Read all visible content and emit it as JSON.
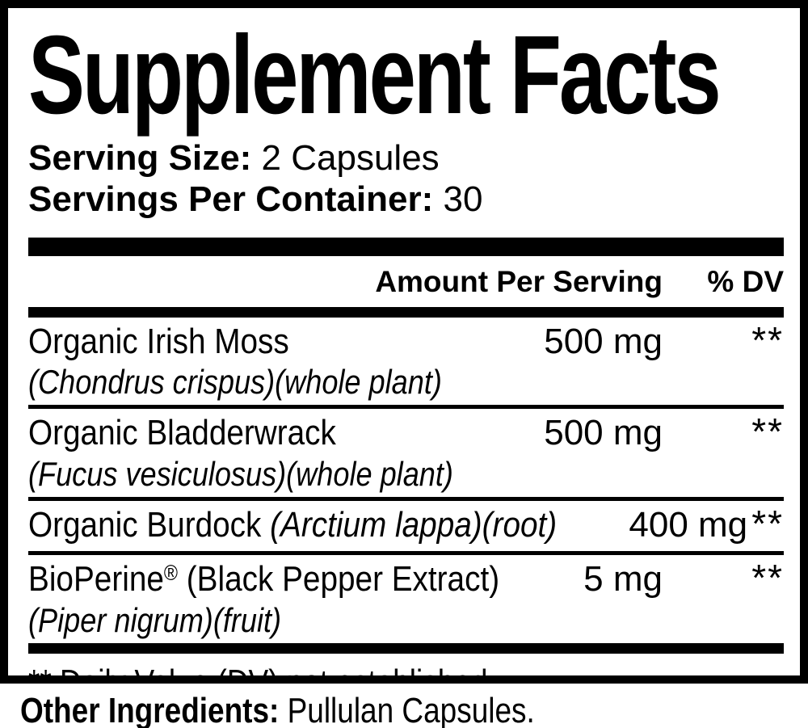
{
  "label": {
    "title": "Supplement Facts",
    "serving_size": {
      "label": "Serving Size:",
      "value": "2 Capsules"
    },
    "servings_per_container": {
      "label": "Servings Per Container:",
      "value": "30"
    },
    "table": {
      "amount_header": "Amount Per Serving",
      "dv_header": "% DV",
      "rows": [
        {
          "name": "Organic Irish Moss",
          "latin": "(Chondrus crispus)(whole plant)",
          "amount": "500 mg",
          "dv": "**"
        },
        {
          "name": "Organic Bladderwrack",
          "latin": "(Fucus vesiculosus)(whole plant)",
          "amount": "500 mg",
          "dv": "**"
        },
        {
          "name": "Organic Burdock",
          "latin_inline": "(Arctium lappa)(root)",
          "amount": "400 mg",
          "dv": "**"
        },
        {
          "name": "BioPerine",
          "trademark": "®",
          "name_suffix": "(Black Pepper Extract)",
          "latin": "(Piper nigrum)(fruit)",
          "amount": "5 mg",
          "dv": "**"
        }
      ]
    },
    "footnote": "** Daily Value (DV) not established",
    "other_ingredients": {
      "label": "Other Ingredients:",
      "value": "Pullulan Capsules."
    },
    "colors": {
      "ink": "#000000",
      "background": "#ffffff"
    }
  }
}
